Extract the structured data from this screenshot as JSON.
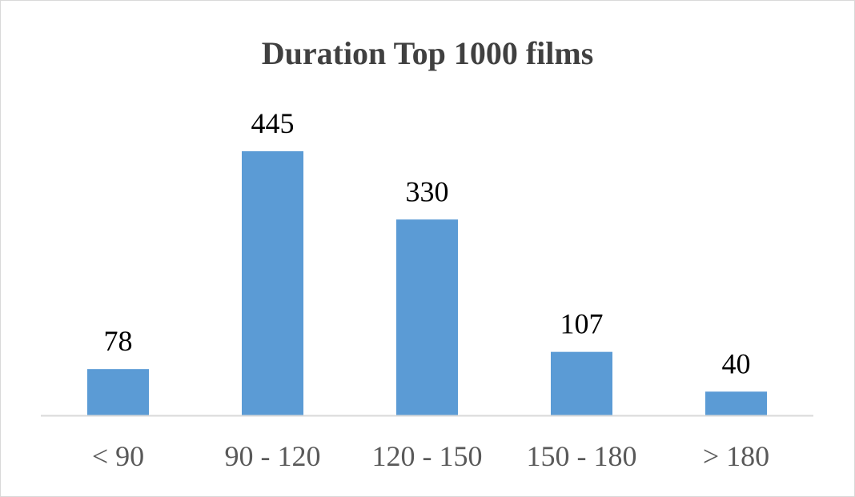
{
  "chart_data": {
    "type": "bar",
    "title": "Duration Top 1000 films",
    "categories": [
      "< 90",
      "90 - 120",
      "120 - 150",
      "150 - 180",
      "> 180"
    ],
    "values": [
      78,
      445,
      330,
      107,
      40
    ],
    "xlabel": "",
    "ylabel": "",
    "ylim": [
      0,
      445
    ],
    "grid": false,
    "legend": "none",
    "bar_color": "#5b9bd5",
    "axis_color": "#d9d9d9"
  }
}
